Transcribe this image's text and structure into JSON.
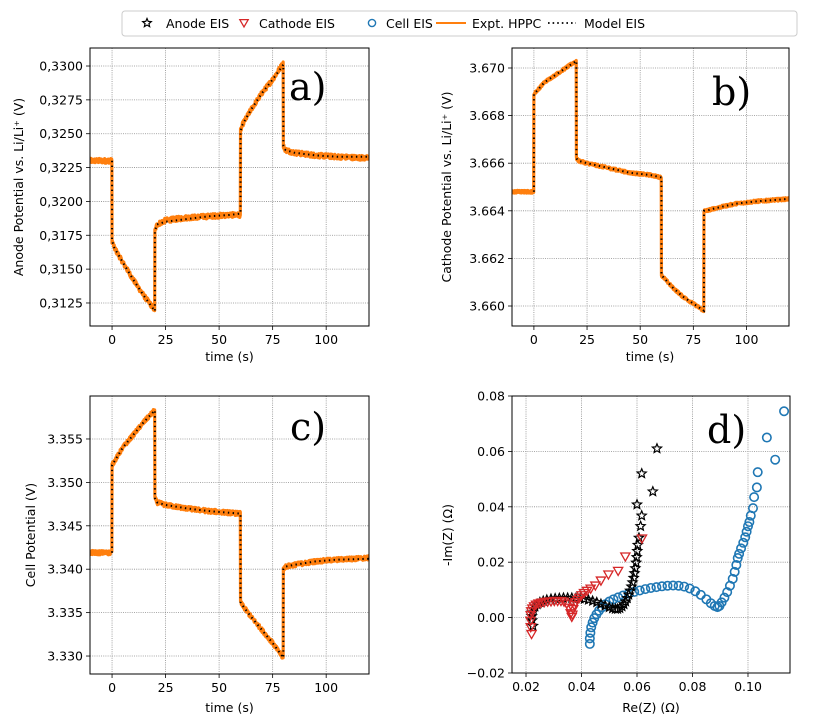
{
  "legend": {
    "placement": "top-center",
    "entries": [
      {
        "label": "Anode EIS",
        "marker": "star-icon",
        "color": "#000000"
      },
      {
        "label": "Cathode EIS",
        "marker": "triangle-down-icon",
        "color": "#d62728"
      },
      {
        "label": "Cell EIS",
        "marker": "circle-icon",
        "color": "#1f77b4"
      },
      {
        "label": "Expt. HPPC",
        "marker": "solid-line-icon",
        "color": "#ff7f0e"
      },
      {
        "label": "Model EIS",
        "marker": "dotted-line-icon",
        "color": "#000000"
      }
    ]
  },
  "colors": {
    "anode": "#000000",
    "cathode": "#d62728",
    "cell": "#1f77b4",
    "hppc": "#ff7f0e",
    "model": "#000000",
    "grid": "#8c8c8c"
  },
  "chart_data": [
    {
      "id": "a",
      "type": "line",
      "panel_label": "a)",
      "xlabel": "time (s)",
      "ylabel": "Anode Potential vs. Li/Li⁺ (V)",
      "xlim": [
        -10.3,
        120
      ],
      "ylim": [
        0.3108,
        0.33133
      ],
      "xticks": [
        0,
        25,
        50,
        75,
        100
      ],
      "xtick_labels": [
        "0",
        "25",
        "50",
        "75",
        "100"
      ],
      "yticks": [
        0.3125,
        0.315,
        0.3175,
        0.32,
        0.3225,
        0.325,
        0.3275,
        0.33
      ],
      "ytick_labels": [
        "0,3125",
        "0,3150",
        "0,3175",
        "0,3200",
        "0,3225",
        "0,3250",
        "0,3275",
        "0,3300"
      ],
      "grid": true,
      "series": [
        {
          "name": "Expt. HPPC",
          "style": "solid",
          "noise": 0.00018,
          "x": [
            -10.3,
            -0.1,
            0,
            1,
            5,
            10,
            15,
            19.9,
            20,
            21,
            25,
            35,
            45,
            55,
            59.9,
            60,
            61,
            65,
            70,
            75,
            79.9,
            80,
            81,
            85,
            95,
            105,
            120
          ],
          "y": [
            0.323,
            0.323,
            0.3171,
            0.3166,
            0.3155,
            0.3142,
            0.313,
            0.312,
            0.3178,
            0.3183,
            0.3186,
            0.3188,
            0.3189,
            0.319,
            0.319,
            0.3252,
            0.3257,
            0.3268,
            0.328,
            0.329,
            0.3302,
            0.3241,
            0.3238,
            0.3236,
            0.3234,
            0.3233,
            0.3232
          ]
        },
        {
          "name": "Model EIS",
          "style": "dotted",
          "x": [
            0,
            0,
            1,
            5,
            10,
            15,
            20,
            20,
            21,
            25,
            35,
            45,
            55,
            60,
            60,
            61,
            65,
            70,
            75,
            80,
            80,
            81,
            85,
            95,
            105,
            120
          ],
          "y": [
            0.323,
            0.3171,
            0.3166,
            0.3155,
            0.3142,
            0.313,
            0.3119,
            0.3178,
            0.3183,
            0.3185,
            0.3187,
            0.3189,
            0.319,
            0.3191,
            0.3252,
            0.3257,
            0.3268,
            0.328,
            0.329,
            0.3301,
            0.3241,
            0.3238,
            0.3236,
            0.3234,
            0.3233,
            0.3233
          ]
        }
      ]
    },
    {
      "id": "b",
      "type": "line",
      "panel_label": "b)",
      "xlabel": "time (s)",
      "ylabel": "Cathode Potential vs. Li/Li⁺ (V)",
      "xlim": [
        -10.3,
        120
      ],
      "ylim": [
        3.65916,
        3.67084
      ],
      "xticks": [
        0,
        25,
        50,
        75,
        100
      ],
      "xtick_labels": [
        "0",
        "25",
        "50",
        "75",
        "100"
      ],
      "yticks": [
        3.66,
        3.662,
        3.664,
        3.666,
        3.668,
        3.67
      ],
      "ytick_labels": [
        "3.660",
        "3.662",
        "3.664",
        "3.666",
        "3.668",
        "3.670"
      ],
      "grid": true,
      "series": [
        {
          "name": "Expt. HPPC",
          "style": "solid",
          "noise": 6e-05,
          "x": [
            -10.3,
            -0.1,
            0,
            1,
            5,
            10,
            15,
            19.9,
            20,
            21,
            25,
            35,
            45,
            55,
            59.9,
            60,
            61,
            65,
            70,
            75,
            79.9,
            80,
            81,
            85,
            95,
            105,
            120
          ],
          "y": [
            3.6648,
            3.6648,
            3.6689,
            3.669,
            3.6694,
            3.6697,
            3.67,
            3.6703,
            3.6662,
            3.6661,
            3.666,
            3.6658,
            3.6656,
            3.6655,
            3.6654,
            3.6613,
            3.6612,
            3.6608,
            3.6604,
            3.6601,
            3.6598,
            3.664,
            3.664,
            3.6641,
            3.6643,
            3.6644,
            3.6645
          ]
        },
        {
          "name": "Model EIS",
          "style": "dotted",
          "x": [
            0,
            0,
            1,
            5,
            10,
            15,
            20,
            20,
            21,
            25,
            35,
            45,
            55,
            60,
            60,
            61,
            65,
            70,
            75,
            80,
            80,
            81,
            85,
            95,
            105,
            120
          ],
          "y": [
            3.6648,
            3.6689,
            3.669,
            3.6694,
            3.6697,
            3.67,
            3.6703,
            3.6662,
            3.6661,
            3.666,
            3.6658,
            3.6656,
            3.6655,
            3.6654,
            3.6613,
            3.6612,
            3.6608,
            3.6604,
            3.6601,
            3.6598,
            3.664,
            3.664,
            3.6641,
            3.6643,
            3.6644,
            3.6645
          ]
        }
      ]
    },
    {
      "id": "c",
      "type": "line",
      "panel_label": "c)",
      "xlabel": "time (s)",
      "ylabel": "Cell Potential (V)",
      "xlim": [
        -10.3,
        120
      ],
      "ylim": [
        3.32793,
        3.35995
      ],
      "xticks": [
        0,
        25,
        50,
        75,
        100
      ],
      "xtick_labels": [
        "0",
        "25",
        "50",
        "75",
        "100"
      ],
      "yticks": [
        3.33,
        3.335,
        3.34,
        3.345,
        3.35,
        3.355
      ],
      "ytick_labels": [
        "3.330",
        "3.335",
        "3.340",
        "3.345",
        "3.350",
        "3.355"
      ],
      "grid": true,
      "series": [
        {
          "name": "Expt. HPPC",
          "style": "solid",
          "noise": 0.00025,
          "x": [
            -10.3,
            -0.1,
            0,
            1,
            5,
            10,
            15,
            19.9,
            20,
            21,
            25,
            35,
            45,
            55,
            59.9,
            60,
            61,
            65,
            70,
            75,
            79.9,
            80,
            81,
            85,
            95,
            105,
            120
          ],
          "y": [
            3.3419,
            3.3419,
            3.352,
            3.3524,
            3.354,
            3.3555,
            3.357,
            3.3583,
            3.3482,
            3.3477,
            3.3474,
            3.347,
            3.3467,
            3.3465,
            3.3464,
            3.3362,
            3.3358,
            3.3345,
            3.333,
            3.3315,
            3.3298,
            3.34,
            3.3403,
            3.3405,
            3.3409,
            3.3411,
            3.3413
          ]
        },
        {
          "name": "Model EIS",
          "style": "dotted",
          "x": [
            0,
            0,
            1,
            5,
            10,
            15,
            20,
            20,
            21,
            25,
            35,
            45,
            55,
            60,
            60,
            61,
            65,
            70,
            75,
            80,
            80,
            81,
            85,
            95,
            105,
            120
          ],
          "y": [
            3.3419,
            3.352,
            3.3524,
            3.354,
            3.3555,
            3.357,
            3.3583,
            3.3482,
            3.3477,
            3.3474,
            3.347,
            3.3467,
            3.3465,
            3.3464,
            3.3362,
            3.3358,
            3.3345,
            3.333,
            3.3315,
            3.3298,
            3.34,
            3.3403,
            3.3405,
            3.3409,
            3.3411,
            3.3412
          ]
        }
      ]
    },
    {
      "id": "d",
      "type": "scatter",
      "panel_label": "d)",
      "xlabel": "Re(Z) (Ω)",
      "ylabel": "-Im(Z) (Ω)",
      "xlim": [
        0.01495,
        0.11514
      ],
      "ylim": [
        -0.02,
        0.08
      ],
      "xticks": [
        0.02,
        0.04,
        0.06,
        0.08,
        0.1
      ],
      "xtick_labels": [
        "0.02",
        "0.04",
        "0.06",
        "0.08",
        "0.10"
      ],
      "yticks": [
        -0.02,
        0.0,
        0.02,
        0.04,
        0.06,
        0.08
      ],
      "ytick_labels": [
        "−0.02",
        "0.00",
        "0.02",
        "0.04",
        "0.06",
        "0.08"
      ],
      "grid": true,
      "series": [
        {
          "name": "Anode EIS",
          "marker": "star",
          "x": [
            0.0225,
            0.0222,
            0.0221,
            0.0222,
            0.0226,
            0.0232,
            0.024,
            0.025,
            0.0262,
            0.0275,
            0.029,
            0.0305,
            0.032,
            0.0335,
            0.035,
            0.0365,
            0.038,
            0.0395,
            0.041,
            0.0425,
            0.044,
            0.0455,
            0.047,
            0.0485,
            0.05,
            0.0512,
            0.0522,
            0.053,
            0.0538,
            0.0546,
            0.0553,
            0.0559,
            0.0565,
            0.057,
            0.0575,
            0.058,
            0.0584,
            0.0588,
            0.0591,
            0.0594,
            0.0597,
            0.0599,
            0.0601,
            0.0603,
            0.0607,
            0.0613,
            0.06,
            0.0617,
            0.0657,
            0.0617,
            0.0672
          ],
          "y": [
            -0.003,
            -0.001,
            0.0005,
            0.0018,
            0.003,
            0.004,
            0.0048,
            0.0055,
            0.006,
            0.0064,
            0.0067,
            0.0069,
            0.007,
            0.0071,
            0.0071,
            0.0071,
            0.007,
            0.0069,
            0.0067,
            0.0064,
            0.006,
            0.0055,
            0.0049,
            0.0043,
            0.0037,
            0.0033,
            0.0031,
            0.0031,
            0.0034,
            0.004,
            0.0048,
            0.0058,
            0.007,
            0.0083,
            0.0097,
            0.0112,
            0.0127,
            0.0143,
            0.016,
            0.0178,
            0.0198,
            0.0218,
            0.024,
            0.0262,
            0.0288,
            0.033,
            0.0408,
            0.0368,
            0.0455,
            0.052,
            0.061
          ]
        },
        {
          "name": "Cathode EIS",
          "marker": "triangle-down",
          "x": [
            0.022,
            0.0217,
            0.0216,
            0.0217,
            0.0219,
            0.0223,
            0.0229,
            0.0236,
            0.0245,
            0.0255,
            0.0266,
            0.0278,
            0.029,
            0.0302,
            0.0314,
            0.0326,
            0.0337,
            0.0347,
            0.0355,
            0.0361,
            0.0365,
            0.0367,
            0.037,
            0.0374,
            0.0379,
            0.0385,
            0.0392,
            0.04,
            0.0409,
            0.042,
            0.0433,
            0.045,
            0.047,
            0.0497,
            0.0532,
            0.0558,
            0.0618
          ],
          "y": [
            -0.006,
            -0.0035,
            -0.0012,
            0.0008,
            0.0022,
            0.0032,
            0.004,
            0.0046,
            0.005,
            0.0053,
            0.0055,
            0.0057,
            0.0058,
            0.0059,
            0.0059,
            0.0059,
            0.0057,
            0.005,
            0.0035,
            0.0015,
            0.0002,
            0.001,
            0.003,
            0.0045,
            0.0055,
            0.0063,
            0.0071,
            0.008,
            0.0088,
            0.0096,
            0.0104,
            0.0115,
            0.0133,
            0.0155,
            0.0168,
            0.022,
            0.0285
          ]
        },
        {
          "name": "Cell EIS",
          "marker": "circle",
          "x": [
            0.043,
            0.043,
            0.0432,
            0.0435,
            0.044,
            0.0446,
            0.0454,
            0.0463,
            0.0474,
            0.0486,
            0.05,
            0.0515,
            0.0532,
            0.055,
            0.057,
            0.059,
            0.061,
            0.063,
            0.065,
            0.067,
            0.069,
            0.071,
            0.073,
            0.075,
            0.077,
            0.079,
            0.081,
            0.083,
            0.085,
            0.0866,
            0.088,
            0.089,
            0.0897,
            0.0905,
            0.0915,
            0.0925,
            0.0935,
            0.0945,
            0.0952,
            0.0958,
            0.0963,
            0.0968,
            0.0975,
            0.0983,
            0.099,
            0.0995,
            0.1,
            0.1005,
            0.101,
            0.1018,
            0.1022,
            0.1032,
            0.1035,
            0.1068,
            0.1098,
            0.113
          ],
          "y": [
            -0.0095,
            -0.0075,
            -0.0055,
            -0.0035,
            -0.0018,
            -0.0002,
            0.0012,
            0.0025,
            0.0037,
            0.0048,
            0.0058,
            0.0066,
            0.0073,
            0.008,
            0.0087,
            0.0093,
            0.0098,
            0.0103,
            0.0107,
            0.011,
            0.0113,
            0.0115,
            0.0116,
            0.0115,
            0.0112,
            0.0105,
            0.0095,
            0.0082,
            0.0066,
            0.0052,
            0.0042,
            0.0038,
            0.0042,
            0.0055,
            0.0072,
            0.0092,
            0.0115,
            0.014,
            0.0165,
            0.019,
            0.0215,
            0.023,
            0.025,
            0.027,
            0.029,
            0.031,
            0.033,
            0.0345,
            0.0368,
            0.0395,
            0.0435,
            0.047,
            0.0525,
            0.065,
            0.057,
            0.0745
          ]
        }
      ]
    }
  ]
}
